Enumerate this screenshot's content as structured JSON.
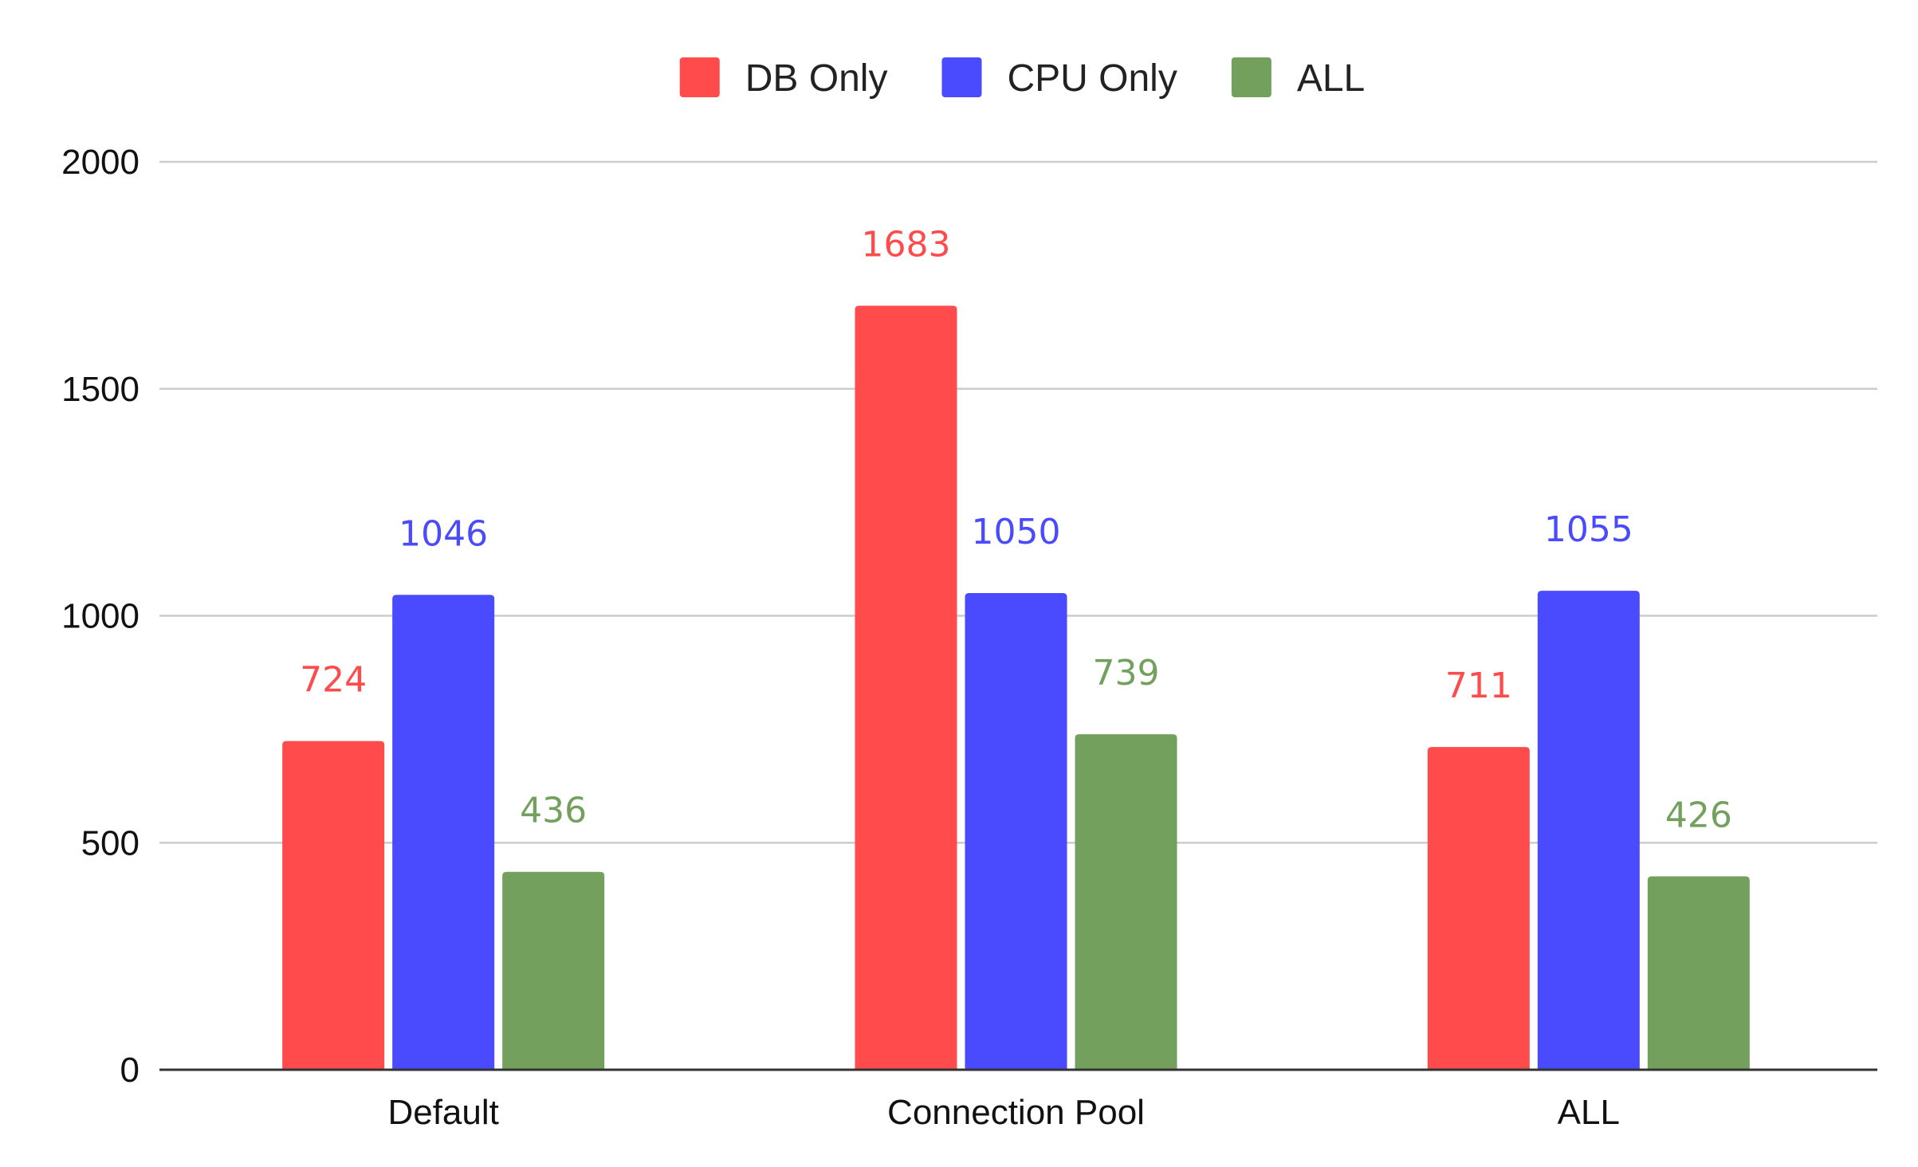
{
  "chart_data": {
    "type": "bar",
    "title": "",
    "xlabel": "",
    "ylabel": "",
    "categories": [
      "Default",
      "Connection Pool",
      "ALL"
    ],
    "series": [
      {
        "name": "DB Only",
        "values": [
          724,
          1683,
          711
        ],
        "color": "#ff4b4b"
      },
      {
        "name": "CPU Only",
        "values": [
          1046,
          1050,
          1055
        ],
        "color": "#4a4aff"
      },
      {
        "name": "ALL",
        "values": [
          436,
          739,
          426
        ],
        "color": "#73a05d"
      }
    ],
    "ylim": [
      0,
      2000
    ],
    "yticks": [
      0,
      500,
      1000,
      1500,
      2000
    ],
    "grid": true,
    "legend": "top-center",
    "data_labels": true
  }
}
